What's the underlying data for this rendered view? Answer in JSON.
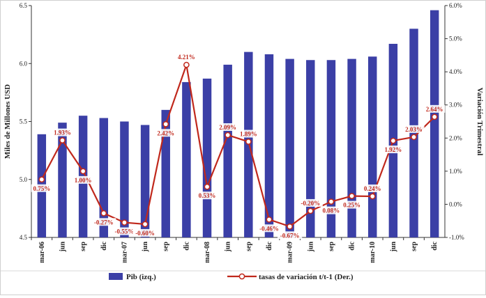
{
  "chart_data": {
    "type": "bar+line",
    "categories": [
      "mar-06",
      "jun",
      "sep",
      "dic",
      "mar-07",
      "jun",
      "sep",
      "dic",
      "mar-08",
      "jun",
      "sep",
      "dic",
      "mar-09",
      "jun",
      "sep",
      "dic",
      "mar-10",
      "jun",
      "sep",
      "dic"
    ],
    "series": [
      {
        "name": "Pib (izq.)",
        "type": "bar",
        "axis": "left",
        "color": "#3b3fa6",
        "values": [
          5.39,
          5.49,
          5.55,
          5.53,
          5.5,
          5.47,
          5.6,
          5.84,
          5.87,
          5.99,
          6.1,
          6.08,
          6.04,
          6.03,
          6.03,
          6.04,
          6.06,
          6.17,
          6.3,
          6.46
        ]
      },
      {
        "name": "tasas de variación t/t-1 (Der.)",
        "type": "line",
        "axis": "right",
        "color": "#c0281c",
        "values": [
          0.75,
          1.93,
          1.0,
          -0.27,
          -0.55,
          -0.6,
          2.42,
          4.21,
          0.53,
          2.09,
          1.89,
          -0.46,
          -0.67,
          -0.2,
          0.08,
          0.25,
          0.24,
          1.92,
          2.03,
          2.64
        ],
        "labels": [
          "0.75%",
          "1.93%",
          "1.00%",
          "-0.27%",
          "-0.55%",
          "-0.60%",
          "2.42%",
          "4.21%",
          "0.53%",
          "2.09%",
          "1.89%",
          "-0.46%",
          "-0.67%",
          "-0.20%",
          "0.08%",
          "0.25%",
          "0.24%",
          "1.92%",
          "2.03%",
          "2.64%"
        ]
      }
    ],
    "ylabel": "Miles de Millones USD",
    "ylabel_right": "Variación Trimestral",
    "ylim": [
      4.5,
      6.5
    ],
    "ylim_right": [
      -1.0,
      6.0
    ],
    "yticks": [
      "4.5",
      "5.0",
      "5.5",
      "6.0",
      "6.5"
    ],
    "yticks_right": [
      "-1.0%",
      "0.0%",
      "1.0%",
      "2.0%",
      "3.0%",
      "4.0%",
      "5.0%",
      "6.0%"
    ],
    "legend_position": "bottom",
    "grid": false
  }
}
